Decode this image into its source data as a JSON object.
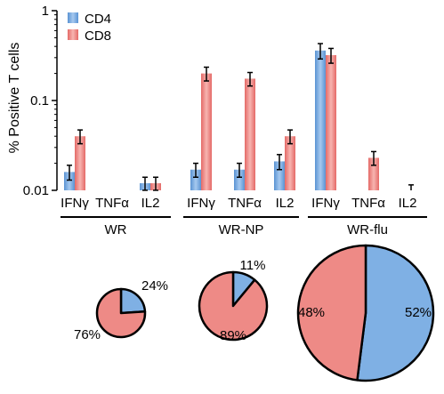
{
  "chart_data": [
    {
      "type": "bar",
      "ylabel": "% Positive T cells",
      "yscale": "log",
      "ylim": [
        0.01,
        1
      ],
      "yticks": [
        {
          "value": 0.01,
          "label": "0.01"
        },
        {
          "value": 0.1,
          "label": "0.1"
        },
        {
          "value": 1,
          "label": "1"
        }
      ],
      "legend": {
        "position": "top-left"
      },
      "series": [
        {
          "name": "CD4",
          "color": "#7fb0e4",
          "values": [
            0.016,
            null,
            0.012,
            0.017,
            0.017,
            0.021,
            0.36,
            null,
            null
          ],
          "errors": [
            0.003,
            null,
            0.002,
            0.003,
            0.003,
            0.004,
            0.07,
            null,
            null
          ]
        },
        {
          "name": "CD8",
          "color": "#ee8a86",
          "values": [
            0.04,
            null,
            0.012,
            0.2,
            0.175,
            0.04,
            0.32,
            0.023,
            null
          ],
          "errors": [
            0.007,
            null,
            0.002,
            0.035,
            0.03,
            0.007,
            0.06,
            0.004,
            null
          ]
        }
      ],
      "categories": [
        "IFNγ",
        "TNFα",
        "IL2",
        "IFNγ",
        "TNFα",
        "IL2",
        "IFNγ",
        "TNFα",
        "IL2"
      ],
      "groups": [
        "WR",
        "WR-NP",
        "WR-flu"
      ]
    },
    {
      "type": "pie",
      "charts": [
        {
          "group": "WR",
          "slices": [
            {
              "series": "CD4",
              "value": 24,
              "label": "24%"
            },
            {
              "series": "CD8",
              "value": 76,
              "label": "76%"
            }
          ]
        },
        {
          "group": "WR-NP",
          "slices": [
            {
              "series": "CD4",
              "value": 11,
              "label": "11%"
            },
            {
              "series": "CD8",
              "value": 89,
              "label": "89%"
            }
          ]
        },
        {
          "group": "WR-flu",
          "slices": [
            {
              "series": "CD4",
              "value": 52,
              "label": "52%"
            },
            {
              "series": "CD8",
              "value": 48,
              "label": "48%"
            }
          ]
        }
      ]
    }
  ]
}
